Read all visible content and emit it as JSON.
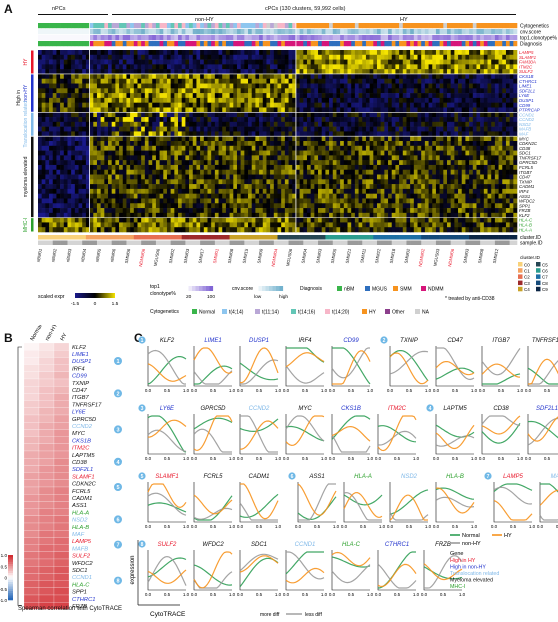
{
  "panelA": {
    "letter": "A",
    "npcs_label": "nPCs",
    "cpcs_label": "cPCs (130 clusters, 59,992 cells)",
    "nonhy_label": "non-HY",
    "hy_label": "HY",
    "track_labels": [
      "Cytogenetics",
      "cnv.score",
      "top1.clonotype%",
      "Diagnosis"
    ],
    "bottom_tracks": [
      "cluster.ID",
      "sample.ID"
    ],
    "row_groups": [
      {
        "label": "High in",
        "color": "#111111"
      },
      {
        "label": "HY",
        "color": "#e8162a"
      },
      {
        "label": "non-HY",
        "color": "#2233cc"
      },
      {
        "label": "Translocation related",
        "color": "#7fb8e8"
      },
      {
        "label": "myeloma elevated",
        "color": "#111111"
      },
      {
        "label": "MHC-I",
        "color": "#2ca02c"
      }
    ],
    "genes": [
      {
        "name": "LAMP5",
        "color": "#e8162a"
      },
      {
        "name": "SLAMF1",
        "color": "#e8162a"
      },
      {
        "name": "FAM30A",
        "color": "#e8162a"
      },
      {
        "name": "ITM2C",
        "color": "#e8162a"
      },
      {
        "name": "SULF2",
        "color": "#e8162a"
      },
      {
        "name": "CKS1B",
        "color": "#2233cc"
      },
      {
        "name": "CTHRC1",
        "color": "#2233cc"
      },
      {
        "name": "LIME1",
        "color": "#2233cc"
      },
      {
        "name": "SDF2L1",
        "color": "#2233cc"
      },
      {
        "name": "LY6E",
        "color": "#2233cc"
      },
      {
        "name": "DUSP1",
        "color": "#2233cc"
      },
      {
        "name": "CD99",
        "color": "#2233cc"
      },
      {
        "name": "PTPRCAP",
        "color": "#2233cc"
      },
      {
        "name": "CCND1",
        "color": "#7fb8e8"
      },
      {
        "name": "CCND2",
        "color": "#7fb8e8"
      },
      {
        "name": "NSD2",
        "color": "#7fb8e8"
      },
      {
        "name": "MAFB",
        "color": "#7fb8e8"
      },
      {
        "name": "MAF",
        "color": "#7fb8e8"
      },
      {
        "name": "MYC",
        "color": "#111111"
      },
      {
        "name": "CDKN2C",
        "color": "#111111"
      },
      {
        "name": "CD38",
        "color": "#111111"
      },
      {
        "name": "SDC1",
        "color": "#111111"
      },
      {
        "name": "TNFRSF17",
        "color": "#111111"
      },
      {
        "name": "GPRC5D",
        "color": "#111111"
      },
      {
        "name": "FCRL5",
        "color": "#111111"
      },
      {
        "name": "ITGB7",
        "color": "#111111"
      },
      {
        "name": "CD47",
        "color": "#111111"
      },
      {
        "name": "TXNIP",
        "color": "#111111"
      },
      {
        "name": "CADM1",
        "color": "#111111"
      },
      {
        "name": "IRF4",
        "color": "#111111"
      },
      {
        "name": "ASS1",
        "color": "#111111"
      },
      {
        "name": "WFDC2",
        "color": "#111111"
      },
      {
        "name": "SPP1",
        "color": "#111111"
      },
      {
        "name": "FRZB",
        "color": "#111111"
      },
      {
        "name": "KLF2",
        "color": "#111111"
      },
      {
        "name": "HLA-C",
        "color": "#2ca02c"
      },
      {
        "name": "HLA-B",
        "color": "#2ca02c"
      },
      {
        "name": "HLA-A",
        "color": "#2ca02c"
      }
    ],
    "samples": [
      "nBM01",
      "nBM02",
      "nBM03",
      "nBM04",
      "nBM05",
      "nBM06",
      "SMM06",
      "NDMM06",
      "MGUS06",
      "SMM02",
      "SMM03",
      "SMM17",
      "SMM01",
      "SMM08",
      "SMM15",
      "SMM09",
      "NDMM04",
      "MGUS06",
      "SMM04",
      "SMM03",
      "SMM05",
      "SMM21",
      "SMM11",
      "SMM22",
      "SMM18",
      "SMM02",
      "NDMM02",
      "MGUS03",
      "NDMM06",
      "SMM03",
      "SMM08",
      "SMM12"
    ],
    "sample_colors": [
      "#111111",
      "#111111",
      "#111111",
      "#111111",
      "#111111",
      "#111111",
      "#111111",
      "#e8162a",
      "#111111",
      "#111111",
      "#111111",
      "#111111",
      "#e8162a",
      "#111111",
      "#111111",
      "#111111",
      "#e8162a",
      "#111111",
      "#111111",
      "#111111",
      "#111111",
      "#111111",
      "#111111",
      "#111111",
      "#111111",
      "#111111",
      "#e8162a",
      "#111111",
      "#e8162a",
      "#111111",
      "#111111",
      "#111111"
    ],
    "scaled_expr_label": "scaled expr",
    "scaled_ticks": [
      "-1.5",
      "0",
      "1.5"
    ],
    "top1_label": "top1 clonotype%",
    "top1_ticks": [
      "20",
      "100"
    ],
    "cnv_label": "cnv.score",
    "cnv_ticks": [
      "low",
      "high"
    ],
    "diagnosis_label": "Diagnosis",
    "diagnosis_items": [
      {
        "name": "nBM",
        "color": "#39b54a"
      },
      {
        "name": "MGUS",
        "color": "#2f6fbe"
      },
      {
        "name": "SMM",
        "color": "#f7931e"
      },
      {
        "name": "NDMM",
        "color": "#d6157a"
      }
    ],
    "cytogenetics_label": "Cytogenetics",
    "cytogenetics_items": [
      {
        "name": "Normal",
        "color": "#39b54a"
      },
      {
        "name": "t(4;14)",
        "color": "#8ec6ef"
      },
      {
        "name": "t(11;14)",
        "color": "#b9a7d6"
      },
      {
        "name": "t(14;16)",
        "color": "#63c6b6"
      },
      {
        "name": "t(14;20)",
        "color": "#f7b6c8"
      },
      {
        "name": "HY",
        "color": "#f7931e"
      },
      {
        "name": "Other",
        "color": "#8c3f8c"
      },
      {
        "name": "NA",
        "color": "#d0d0d0"
      }
    ],
    "cluster_label": "cluster.ID",
    "cluster_items": [
      {
        "name": "C0",
        "color": "#f9d27a"
      },
      {
        "name": "C1",
        "color": "#f4a261"
      },
      {
        "name": "C2",
        "color": "#e76f51"
      },
      {
        "name": "C3",
        "color": "#9e2a2b"
      },
      {
        "name": "C4",
        "color": "#c9a227"
      },
      {
        "name": "C5",
        "color": "#264653"
      },
      {
        "name": "C6",
        "color": "#2a9d8f"
      },
      {
        "name": "C7",
        "color": "#1d6fa5"
      },
      {
        "name": "C8",
        "color": "#144a7a"
      },
      {
        "name": "C9",
        "color": "#0b2545"
      }
    ],
    "treated_note": "* treated by anti-CD38"
  },
  "panelB": {
    "letter": "B",
    "columns": [
      "Normal",
      "non-HY",
      "HY"
    ],
    "genes": [
      {
        "name": "KLF2",
        "color": "#111111",
        "vals": [
          0.05,
          0.12,
          0.2
        ]
      },
      {
        "name": "LIME1",
        "color": "#2233cc",
        "vals": [
          0.1,
          0.15,
          0.25
        ]
      },
      {
        "name": "DUSP1",
        "color": "#2233cc",
        "vals": [
          0.1,
          0.2,
          0.3
        ]
      },
      {
        "name": "IRF4",
        "color": "#111111",
        "vals": [
          0.15,
          0.2,
          0.3
        ]
      },
      {
        "name": "CD99",
        "color": "#2233cc",
        "vals": [
          0.15,
          0.25,
          0.35
        ]
      },
      {
        "name": "TXNIP",
        "color": "#111111",
        "vals": [
          0.2,
          0.25,
          0.3
        ]
      },
      {
        "name": "CD47",
        "color": "#111111",
        "vals": [
          0.2,
          0.3,
          0.35
        ]
      },
      {
        "name": "ITGB7",
        "color": "#111111",
        "vals": [
          0.2,
          0.3,
          0.4
        ]
      },
      {
        "name": "TNFRSF17",
        "color": "#111111",
        "vals": [
          0.25,
          0.3,
          0.4
        ]
      },
      {
        "name": "LY6E",
        "color": "#2233cc",
        "vals": [
          0.25,
          0.35,
          0.4
        ]
      },
      {
        "name": "GPRC5D",
        "color": "#111111",
        "vals": [
          0.3,
          0.35,
          0.45
        ]
      },
      {
        "name": "CCND2",
        "color": "#7fb8e8",
        "vals": [
          0.3,
          0.4,
          0.45
        ]
      },
      {
        "name": "MYC",
        "color": "#111111",
        "vals": [
          0.3,
          0.4,
          0.5
        ]
      },
      {
        "name": "CKS1B",
        "color": "#2233cc",
        "vals": [
          0.35,
          0.4,
          0.5
        ]
      },
      {
        "name": "ITM2C",
        "color": "#e8162a",
        "vals": [
          0.35,
          0.45,
          0.5
        ]
      },
      {
        "name": "LAPTM5",
        "color": "#111111",
        "vals": [
          0.4,
          0.45,
          0.5
        ]
      },
      {
        "name": "CD38",
        "color": "#111111",
        "vals": [
          0.4,
          0.45,
          0.55
        ]
      },
      {
        "name": "SDF2L1",
        "color": "#2233cc",
        "vals": [
          0.4,
          0.5,
          0.55
        ]
      },
      {
        "name": "SLAMF1",
        "color": "#e8162a",
        "vals": [
          0.45,
          0.5,
          0.55
        ]
      },
      {
        "name": "CDKN2C",
        "color": "#111111",
        "vals": [
          0.45,
          0.5,
          0.55
        ]
      },
      {
        "name": "FCRL5",
        "color": "#111111",
        "vals": [
          0.45,
          0.55,
          0.6
        ]
      },
      {
        "name": "CADM1",
        "color": "#111111",
        "vals": [
          0.5,
          0.55,
          0.6
        ]
      },
      {
        "name": "ASS1",
        "color": "#111111",
        "vals": [
          0.5,
          0.55,
          0.6
        ]
      },
      {
        "name": "HLA-A",
        "color": "#2ca02c",
        "vals": [
          0.5,
          0.6,
          0.6
        ]
      },
      {
        "name": "NSD2",
        "color": "#7fb8e8",
        "vals": [
          0.55,
          0.6,
          0.65
        ]
      },
      {
        "name": "HLA-B",
        "color": "#2ca02c",
        "vals": [
          0.55,
          0.6,
          0.65
        ]
      },
      {
        "name": "MAF",
        "color": "#7fb8e8",
        "vals": [
          0.55,
          0.65,
          0.65
        ]
      },
      {
        "name": "LAMP5",
        "color": "#e8162a",
        "vals": [
          0.6,
          0.65,
          0.7
        ]
      },
      {
        "name": "MAFB",
        "color": "#7fb8e8",
        "vals": [
          0.6,
          0.7,
          0.7
        ]
      },
      {
        "name": "SULF2",
        "color": "#e8162a",
        "vals": [
          0.65,
          0.7,
          0.75
        ]
      },
      {
        "name": "WFDC2",
        "color": "#111111",
        "vals": [
          0.65,
          0.7,
          0.75
        ]
      },
      {
        "name": "SDC1",
        "color": "#111111",
        "vals": [
          0.7,
          0.75,
          0.8
        ]
      },
      {
        "name": "CCND1",
        "color": "#7fb8e8",
        "vals": [
          0.7,
          0.75,
          0.8
        ]
      },
      {
        "name": "HLA-C",
        "color": "#2ca02c",
        "vals": [
          0.75,
          0.8,
          0.8
        ]
      },
      {
        "name": "SPP1",
        "color": "#111111",
        "vals": [
          0.75,
          0.8,
          0.85
        ]
      },
      {
        "name": "CTHRC1",
        "color": "#2233cc",
        "vals": [
          0.8,
          0.85,
          0.85
        ]
      },
      {
        "name": "FRZB",
        "color": "#111111",
        "vals": [
          0.85,
          0.9,
          0.9
        ]
      }
    ],
    "group_numbers": [
      "1",
      "2",
      "3",
      "4",
      "5",
      "6",
      "7",
      "8"
    ],
    "scale_ticks": [
      "1.0",
      "0.5",
      "0",
      "-0.5",
      "-1.0"
    ],
    "caption": "Spearman correlation with CytoTRACE"
  },
  "panelC": {
    "letter": "C",
    "x_ticks": [
      "0.0",
      "0.5",
      "1.0"
    ],
    "y_label": "expression",
    "x_label": "CytoTRACE",
    "x_arrow_left": "more diff",
    "x_arrow_right": "less diff",
    "rows": [
      {
        "group": "1",
        "plots": [
          {
            "name": "KLF2",
            "color": "#111111"
          },
          {
            "name": "LIME1",
            "color": "#2233cc"
          },
          {
            "name": "DUSP1",
            "color": "#2233cc"
          },
          {
            "name": "IRF4",
            "color": "#111111"
          },
          {
            "name": "CD99",
            "color": "#2233cc"
          }
        ]
      },
      {
        "group": "2",
        "plots": [
          {
            "name": "TXNIP",
            "color": "#111111"
          },
          {
            "name": "CD47",
            "color": "#111111"
          },
          {
            "name": "ITGB7",
            "color": "#111111"
          },
          {
            "name": "TNFRSF17",
            "color": "#111111"
          }
        ]
      },
      {
        "group": "3",
        "plots": [
          {
            "name": "LY6E",
            "color": "#2233cc"
          },
          {
            "name": "GPRC5D",
            "color": "#111111"
          },
          {
            "name": "CCND2",
            "color": "#7fb8e8"
          },
          {
            "name": "MYC",
            "color": "#111111"
          },
          {
            "name": "CKS1B",
            "color": "#2233cc"
          },
          {
            "name": "ITM2C",
            "color": "#e8162a"
          }
        ]
      },
      {
        "group": "4",
        "plots": [
          {
            "name": "LAPTM5",
            "color": "#111111"
          },
          {
            "name": "CD38",
            "color": "#111111"
          },
          {
            "name": "SDF2L1",
            "color": "#2233cc"
          }
        ]
      },
      {
        "group": "5",
        "plots": [
          {
            "name": "SLAMF1",
            "color": "#e8162a"
          },
          {
            "name": "FCRL5",
            "color": "#111111"
          },
          {
            "name": "CADM1",
            "color": "#111111"
          }
        ]
      },
      {
        "group": "6",
        "plots": [
          {
            "name": "ASS1",
            "color": "#111111"
          },
          {
            "name": "HLA-A",
            "color": "#2ca02c"
          },
          {
            "name": "NSD2",
            "color": "#7fb8e8"
          },
          {
            "name": "HLA-B",
            "color": "#2ca02c"
          }
        ]
      },
      {
        "group": "7",
        "plots": [
          {
            "name": "LAMP5",
            "color": "#e8162a"
          },
          {
            "name": "MAFB",
            "color": "#7fb8e8"
          }
        ]
      },
      {
        "group": "8",
        "plots": [
          {
            "name": "SULF2",
            "color": "#e8162a"
          },
          {
            "name": "WFDC2",
            "color": "#111111"
          },
          {
            "name": "SDC1",
            "color": "#111111"
          },
          {
            "name": "CCND1",
            "color": "#7fb8e8"
          },
          {
            "name": "HLA-C",
            "color": "#2ca02c"
          },
          {
            "name": "CTHRC1",
            "color": "#2233cc"
          },
          {
            "name": "FRZB",
            "color": "#111111"
          }
        ]
      }
    ],
    "legend_series": [
      {
        "name": "Normal",
        "color": "#2f9e55"
      },
      {
        "name": "non-HY",
        "color": "#9a9a9a"
      },
      {
        "name": "HY",
        "color": "#f7931e"
      }
    ],
    "legend_gene_title": "Gene",
    "legend_gene_items": [
      {
        "name": "High in HY",
        "color": "#e8162a"
      },
      {
        "name": "High in non-HY",
        "color": "#2233cc"
      },
      {
        "name": "Translocation related",
        "color": "#7fb8e8"
      },
      {
        "name": "Myeloma elevated",
        "color": "#111111"
      },
      {
        "name": "MHC-I",
        "color": "#2ca02c"
      }
    ]
  },
  "colors": {
    "normal": "#2f9e55",
    "nonhy": "#9a9a9a",
    "hy": "#f7931e",
    "heat_low": "#1a1a8c",
    "heat_mid": "#000000",
    "heat_high": "#f5e400"
  }
}
